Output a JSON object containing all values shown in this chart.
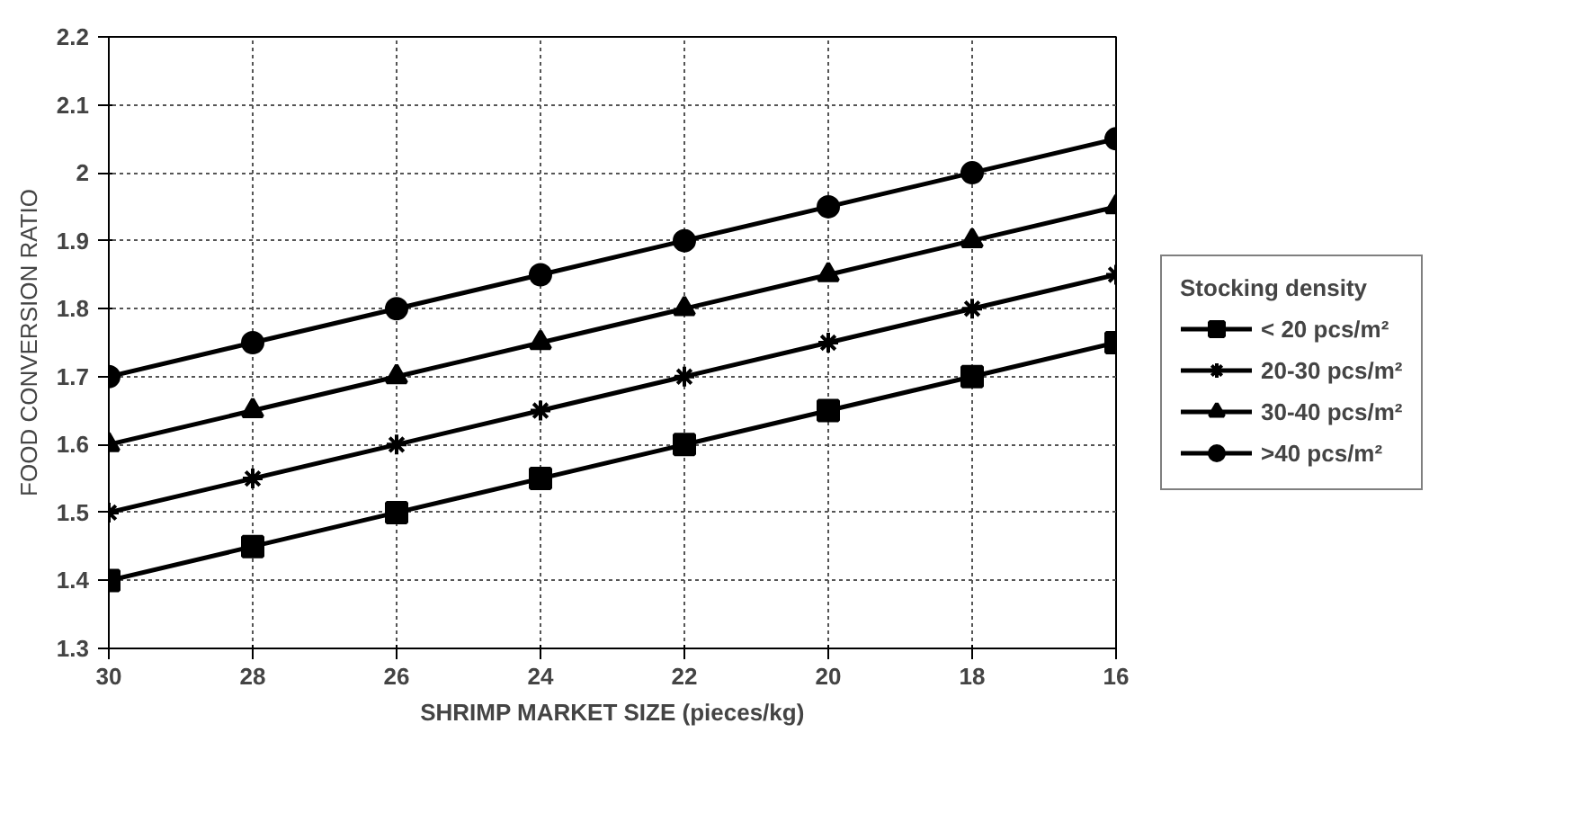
{
  "chart_data": {
    "type": "line",
    "xlabel": "SHRIMP MARKET SIZE (pieces/kg)",
    "ylabel": "FOOD CONVERSION RATIO",
    "legend_title": "Stocking density",
    "x": [
      30,
      28,
      26,
      24,
      22,
      20,
      18,
      16
    ],
    "xlim": [
      30,
      16
    ],
    "xticks": [
      30,
      28,
      26,
      24,
      22,
      20,
      18,
      16
    ],
    "ylim": [
      1.3,
      2.2
    ],
    "yticks": [
      1.3,
      1.4,
      1.5,
      1.6,
      1.7,
      1.8,
      1.9,
      2,
      2.1,
      2.2
    ],
    "grid": true,
    "legend": "right",
    "line_style": "solid",
    "series": [
      {
        "name": "< 20 pcs/m²",
        "color": "#000000",
        "marker": "square",
        "values": [
          1.4,
          1.45,
          1.5,
          1.55,
          1.6,
          1.65,
          1.7,
          1.75
        ]
      },
      {
        "name": "20-30 pcs/m²",
        "color": "#000000",
        "marker": "cross",
        "values": [
          1.5,
          1.55,
          1.6,
          1.65,
          1.7,
          1.75,
          1.8,
          1.85
        ]
      },
      {
        "name": "30-40 pcs/m²",
        "color": "#000000",
        "marker": "triangle",
        "values": [
          1.6,
          1.65,
          1.7,
          1.75,
          1.8,
          1.85,
          1.9,
          1.95
        ]
      },
      {
        "name": ">40 pcs/m²",
        "color": "#000000",
        "marker": "circle",
        "values": [
          1.7,
          1.75,
          1.8,
          1.85,
          1.9,
          1.95,
          2,
          2.05
        ]
      }
    ]
  }
}
